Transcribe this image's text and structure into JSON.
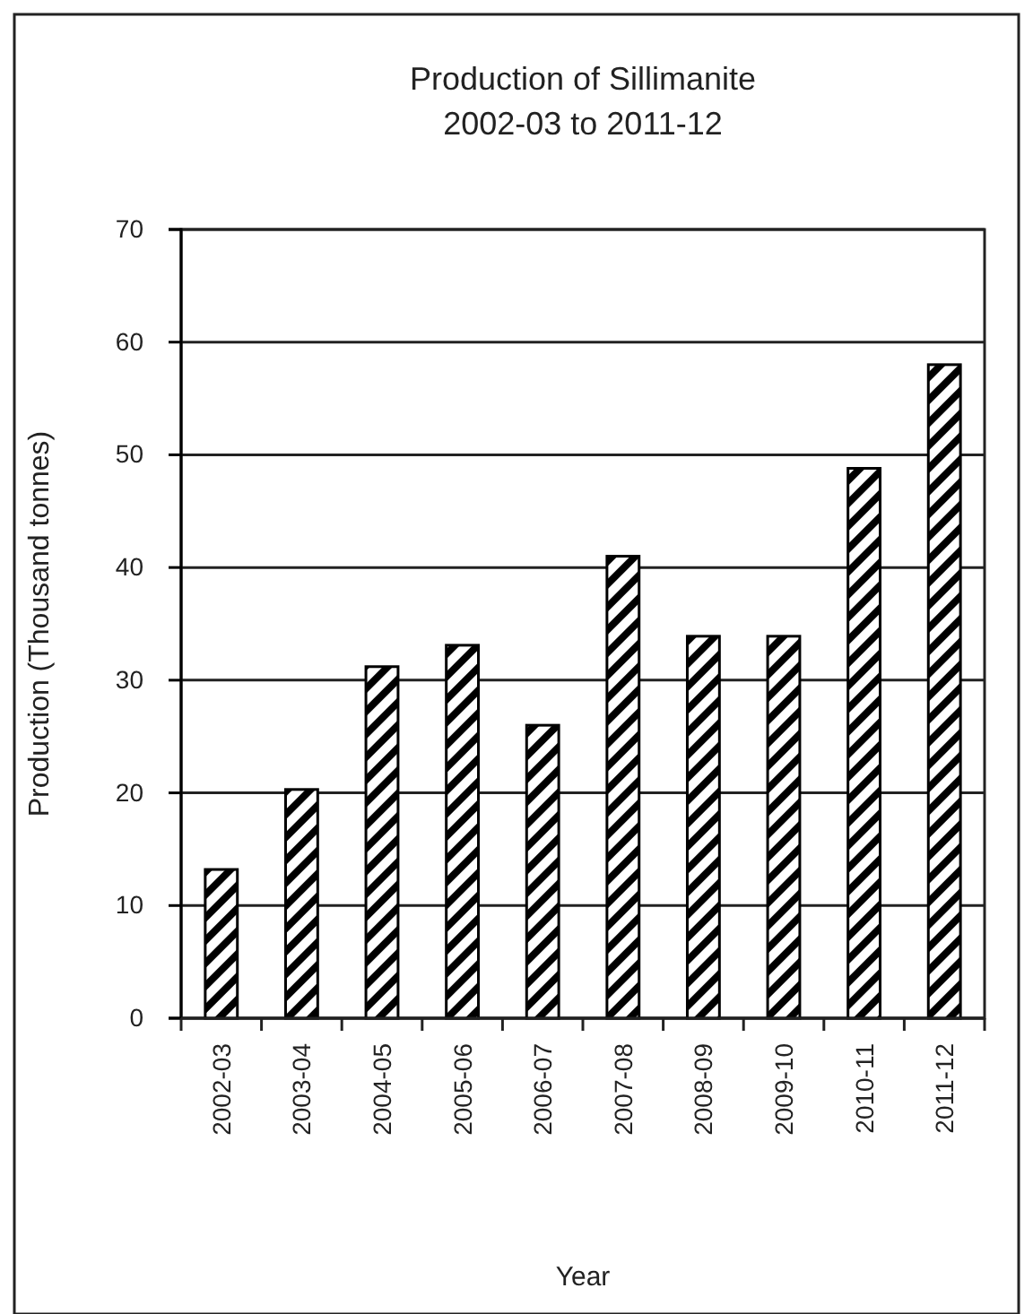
{
  "chart_data": {
    "type": "bar",
    "title": "Production of Sillimanite\n2002-03 to 2011-12",
    "xlabel": "Year",
    "ylabel": "Production (Thousand tonnes)",
    "categories": [
      "2002-03",
      "2003-04",
      "2004-05",
      "2005-06",
      "2006-07",
      "2007-08",
      "2008-09",
      "2009-10",
      "2010-11",
      "2011-12"
    ],
    "values": [
      13.2,
      20.3,
      31.2,
      33.1,
      26.0,
      41.0,
      33.9,
      33.9,
      48.8,
      58.0
    ],
    "color": "#000000",
    "ylim": [
      0,
      70
    ],
    "yticks": [
      0,
      10,
      20,
      30,
      40,
      50,
      60,
      70
    ],
    "grid": "y",
    "legend": false
  }
}
